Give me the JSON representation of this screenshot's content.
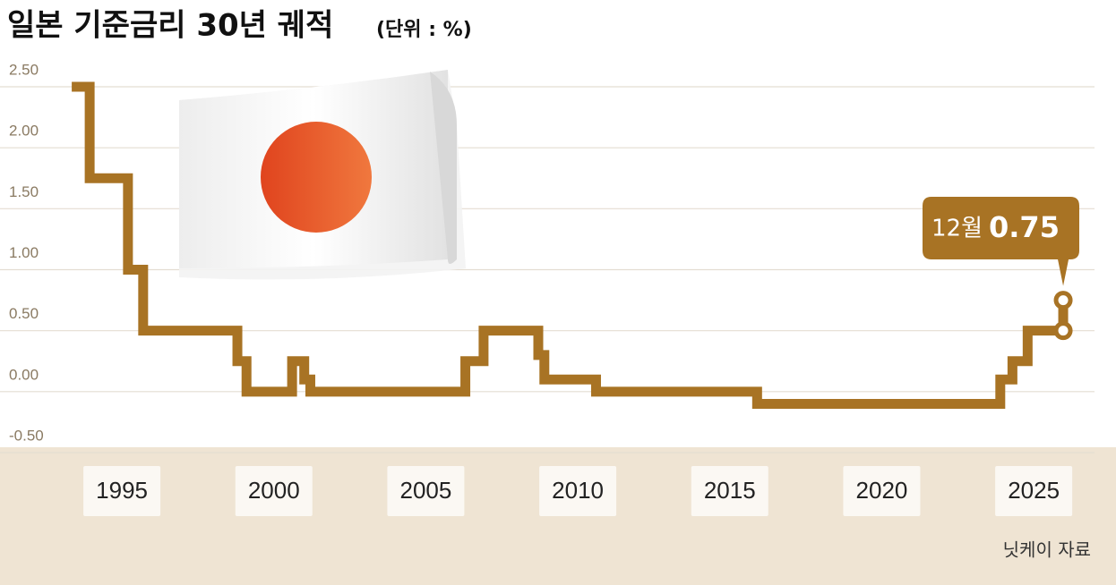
{
  "chart_data": {
    "type": "step-line",
    "title": "일본 기준금리 30년 궤적",
    "subtitle": "(단위 : %)",
    "source": "닛케이 자료",
    "annotation": "12월",
    "xlim": [
      1993.2,
      2027
    ],
    "xticks": [
      1995,
      2000,
      2005,
      2010,
      2015,
      2020,
      2025
    ],
    "ylim": [
      -0.5,
      2.5
    ],
    "yticks": [
      {
        "value": 2.5,
        "label": "2.50"
      },
      {
        "value": 2,
        "label": "2.00"
      },
      {
        "value": 1.5,
        "label": "1.50"
      },
      {
        "value": 1,
        "label": "1.00"
      },
      {
        "value": 0.5,
        "label": "0.50"
      },
      {
        "value": 0,
        "label": "0.00"
      },
      {
        "value": -0.5,
        "label": "-0.50"
      }
    ],
    "grid": true,
    "series": [
      {
        "color": "#a87324",
        "x": [
          1993.35,
          1993.94,
          1993.94,
          1995.2,
          1995.2,
          1995.7,
          1995.7,
          1998.8,
          1998.8,
          1999.1,
          1999.1,
          2000.6,
          2000.6,
          2001.0,
          2001.0,
          2001.2,
          2001.2,
          2006.3,
          2006.3,
          2006.9,
          2006.9,
          2008.7,
          2008.7,
          2008.9,
          2008.9,
          2010.6,
          2010.6,
          2015.9,
          2015.9,
          2023.9,
          2023.9,
          2024.3,
          2024.3,
          2024.8,
          2024.8,
          2025.97,
          2025.97
        ],
        "values": [
          2.5,
          2.5,
          1.75,
          1.75,
          1.0,
          1.0,
          0.5,
          0.5,
          0.25,
          0.25,
          0,
          0,
          0.25,
          0.25,
          0.1,
          0.1,
          0,
          0,
          0.25,
          0.25,
          0.5,
          0.5,
          0.3,
          0.3,
          0.1,
          0.1,
          0,
          0,
          -0.1,
          -0.1,
          0.1,
          0.1,
          0.25,
          0.25,
          0.5,
          0.5,
          0.75
        ]
      }
    ]
  }
}
